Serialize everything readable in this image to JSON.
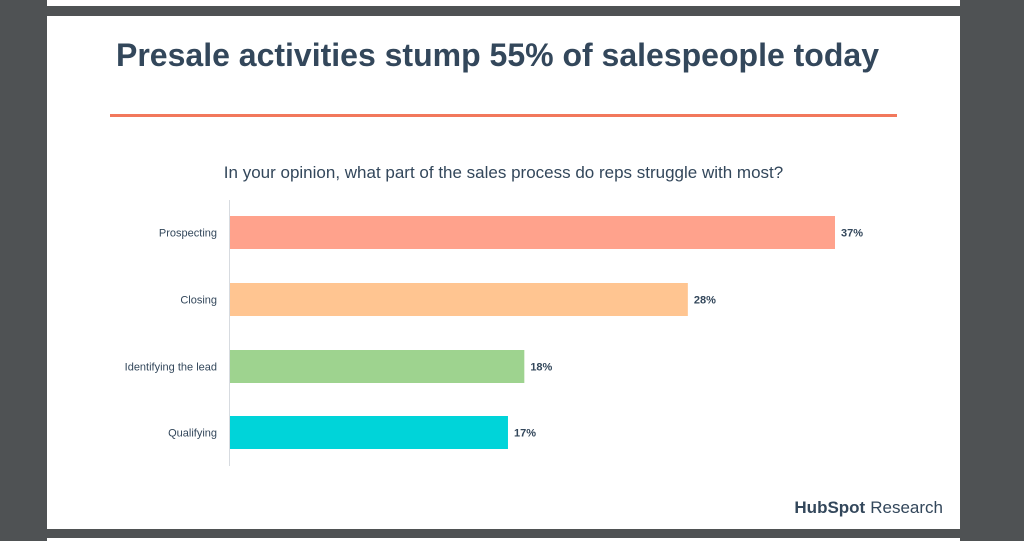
{
  "slide": {
    "title": "Presale activities stump 55% of salespeople today",
    "brand_name": "HubSpot",
    "brand_suffix": "Research"
  },
  "colors": {
    "title": "#33475b",
    "accent_rule": "#f2785c"
  },
  "chart_data": {
    "type": "bar",
    "orientation": "horizontal",
    "title": "In your opinion, what part of the sales process do reps struggle with most?",
    "xlabel": "",
    "ylabel": "",
    "categories": [
      "Prospecting",
      "Closing",
      "Identifying the lead",
      "Qualifying"
    ],
    "values": [
      37,
      28,
      18,
      17
    ],
    "value_labels": [
      "37%",
      "28%",
      "18%",
      "17%"
    ],
    "bar_colors": [
      "#ffa28c",
      "#ffc591",
      "#9ed38f",
      "#00d4d9"
    ],
    "xlim": [
      0,
      37
    ],
    "grid": false,
    "legend": "none"
  }
}
